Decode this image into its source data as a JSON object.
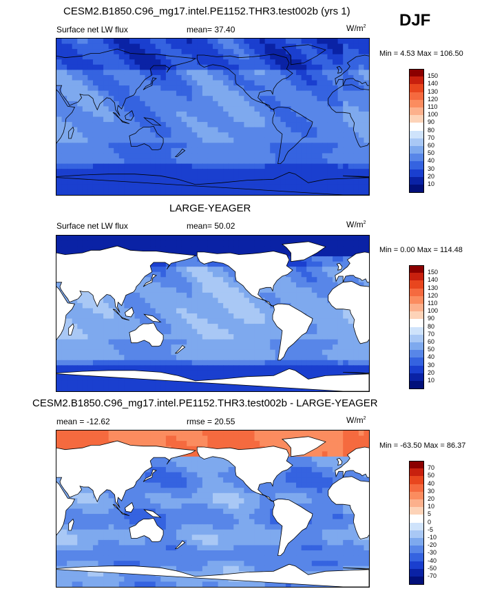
{
  "season": "DJF",
  "panels": [
    {
      "title": "CESM2.B1850.C96_mg17.intel.PE1152.THR3.test002b (yrs 1)",
      "left_label": "Surface net LW flux",
      "mid_label": "mean=  37.40",
      "units": "W/m",
      "units_sup": "2",
      "minmax": "Min =  4.53 Max = 106.50",
      "mask_land": false
    },
    {
      "title": "LARGE-YEAGER",
      "left_label": "Surface net LW flux",
      "mid_label": "mean=  50.02",
      "units": "W/m",
      "units_sup": "2",
      "minmax": "Min =  0.00 Max = 114.48",
      "mask_land": true
    },
    {
      "title": "CESM2.B1850.C96_mg17.intel.PE1152.THR3.test002b - LARGE-YEAGER",
      "left_label": "mean = -12.62",
      "mid_label": "rmse =  20.55",
      "units": "W/m",
      "units_sup": "2",
      "minmax": "Min = -63.50 Max =  86.37",
      "mask_land": true
    }
  ],
  "colorbars": {
    "abs_levels": [
      "150",
      "140",
      "130",
      "120",
      "110",
      "100",
      "90",
      "80",
      "70",
      "60",
      "50",
      "40",
      "30",
      "20",
      "10"
    ],
    "diff_levels": [
      "70",
      "50",
      "40",
      "30",
      "20",
      "10",
      "5",
      "0",
      "-5",
      "-10",
      "-20",
      "-30",
      "-40",
      "-50",
      "-70"
    ],
    "colors": [
      "#8b0000",
      "#c8200e",
      "#e8461e",
      "#f56a3f",
      "#fb8c5f",
      "#fcb08c",
      "#fdd3b8",
      "#ffffff",
      "#cfe3fb",
      "#a9c8f5",
      "#7ea9ee",
      "#5886e8",
      "#3563e0",
      "#1a3fcf",
      "#0a22a5",
      "#02107a"
    ]
  },
  "chart_data": [
    {
      "type": "heatmap",
      "title": "CESM2.B1850.C96_mg17.intel.PE1152.THR3.test002b (yrs 1)",
      "variable": "Surface net LW flux",
      "units": "W/m2",
      "mean": 37.4,
      "min": 4.53,
      "max": 106.5,
      "contour_levels": [
        10,
        20,
        30,
        40,
        50,
        60,
        70,
        80,
        90,
        100,
        110,
        120,
        130,
        140,
        150
      ]
    },
    {
      "type": "heatmap",
      "title": "LARGE-YEAGER",
      "variable": "Surface net LW flux",
      "units": "W/m2",
      "mean": 50.02,
      "min": 0.0,
      "max": 114.48,
      "contour_levels": [
        10,
        20,
        30,
        40,
        50,
        60,
        70,
        80,
        90,
        100,
        110,
        120,
        130,
        140,
        150
      ]
    },
    {
      "type": "heatmap",
      "title": "CESM2.B1850.C96_mg17.intel.PE1152.THR3.test002b - LARGE-YEAGER",
      "units": "W/m2",
      "mean": -12.62,
      "rmse": 20.55,
      "min": -63.5,
      "max": 86.37,
      "contour_levels": [
        -70,
        -50,
        -40,
        -30,
        -20,
        -10,
        -5,
        0,
        5,
        10,
        20,
        30,
        40,
        50,
        70
      ]
    }
  ]
}
